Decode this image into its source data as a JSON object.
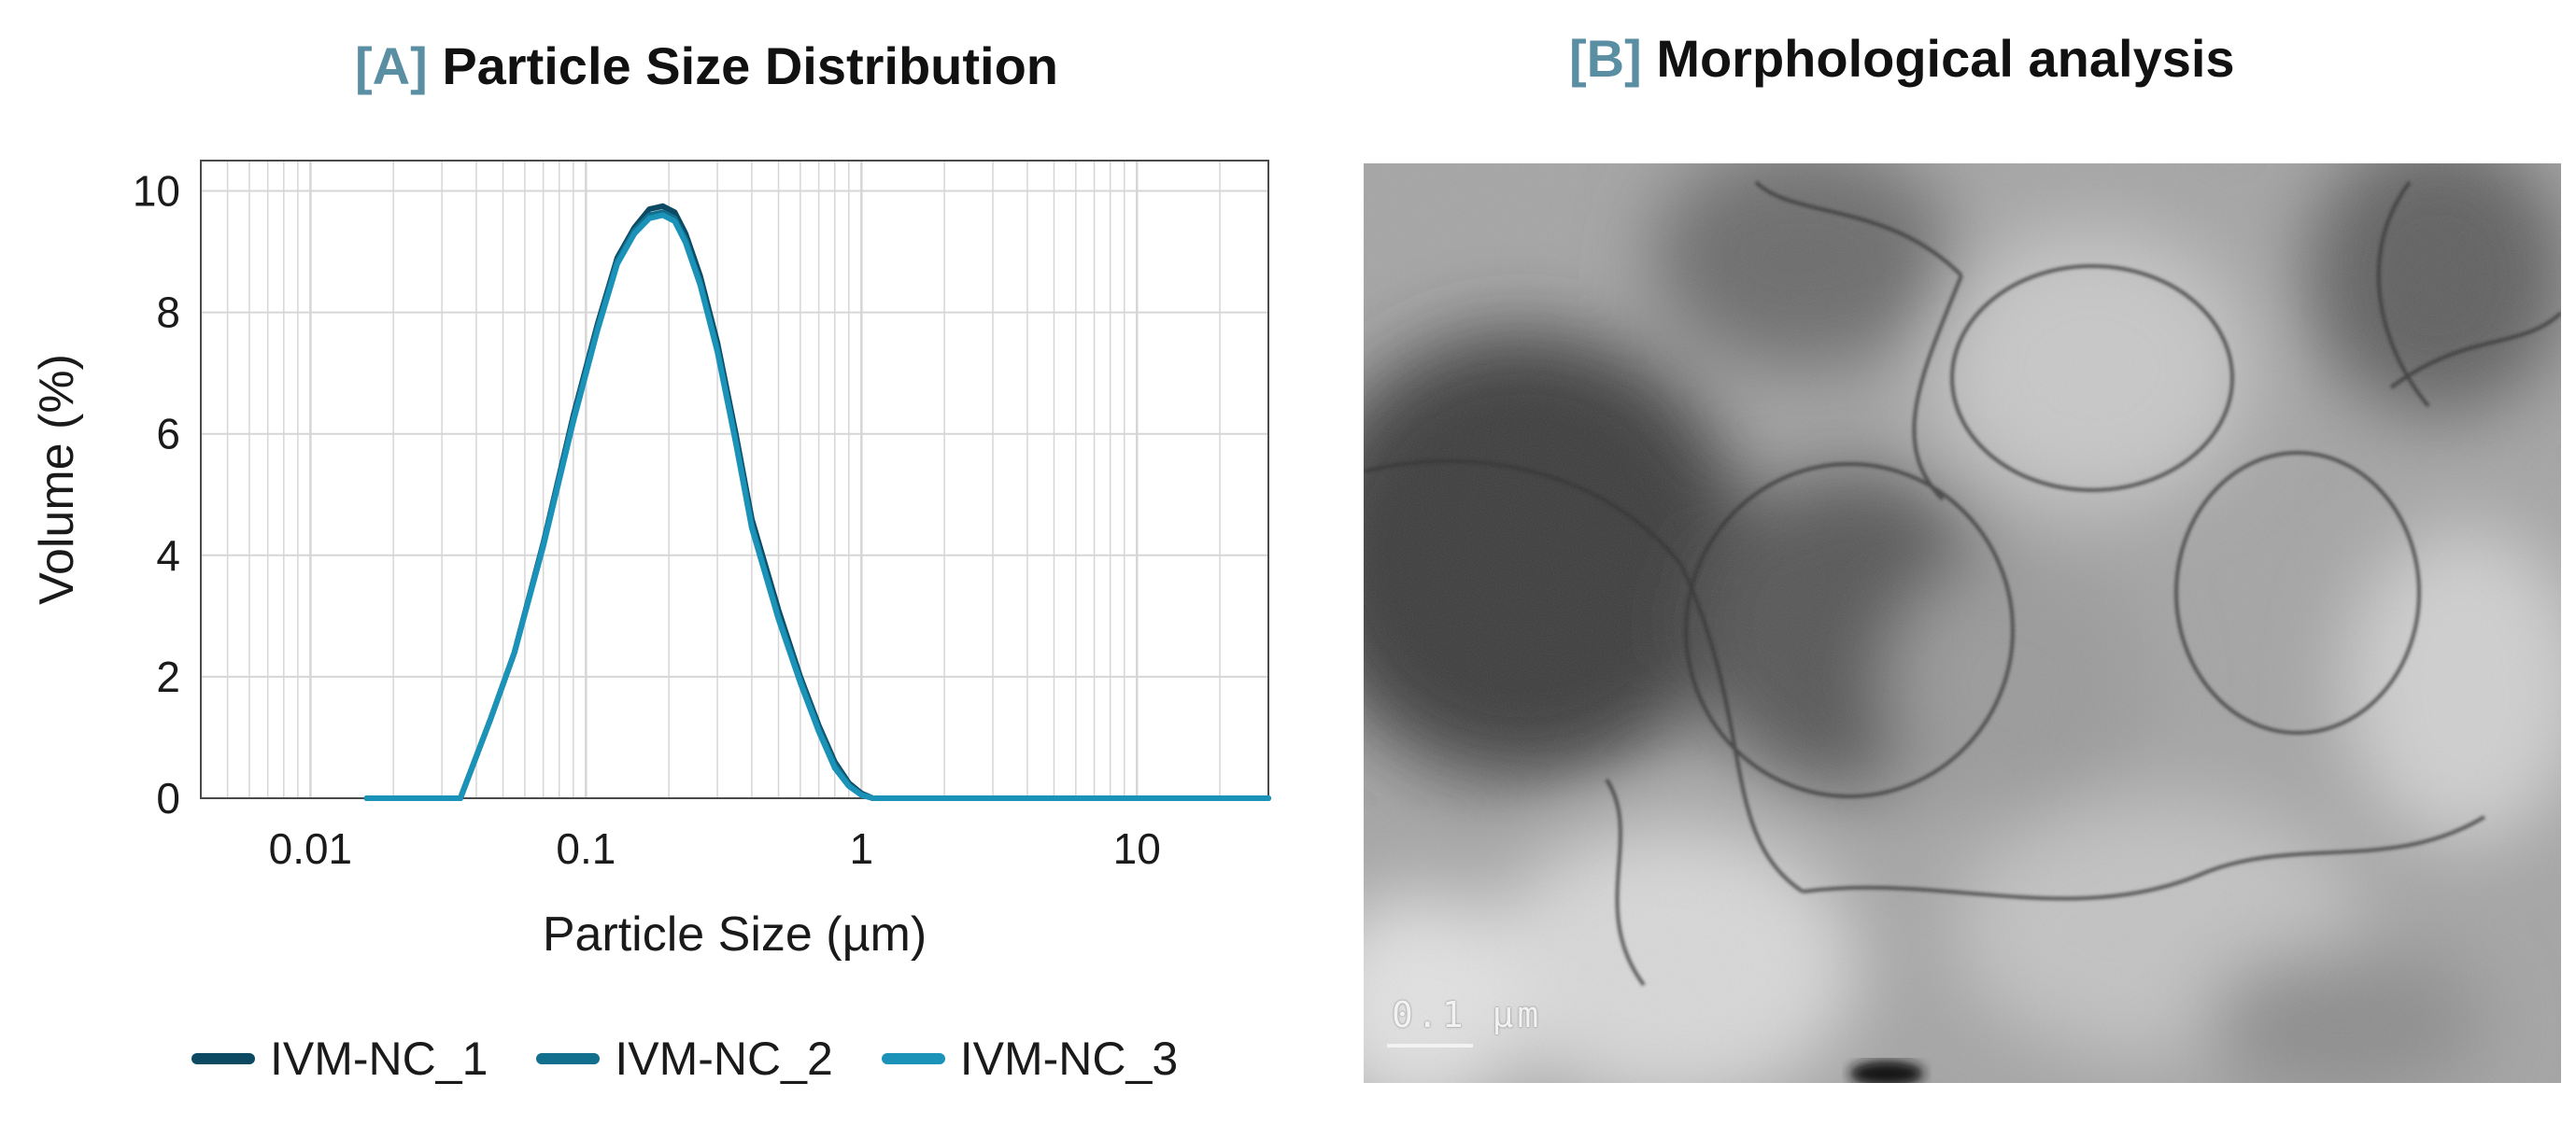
{
  "panel_a": {
    "tag": "[A]",
    "title": "Particle Size Distribution"
  },
  "panel_b": {
    "tag": "[B]",
    "title": "Morphological analysis",
    "scale_bar_label": "0.1 µm"
  },
  "colors": {
    "series_1": "#0c4a63",
    "series_2": "#126f8e",
    "series_3": "#1b93b8",
    "tag": "#5a8fa3",
    "grid": "#d6d6d6"
  },
  "chart_data": {
    "type": "line",
    "xlabel": "Particle Size (µm)",
    "ylabel": "Volume (%)",
    "x_scale": "log",
    "xlim": [
      0.004,
      30
    ],
    "ylim": [
      0,
      10.5
    ],
    "x_ticks": [
      {
        "value": 0.01,
        "label": "0.01"
      },
      {
        "value": 0.1,
        "label": "0.1"
      },
      {
        "value": 1,
        "label": "1"
      },
      {
        "value": 10,
        "label": "10"
      }
    ],
    "y_ticks": [
      {
        "value": 0,
        "label": "0"
      },
      {
        "value": 2,
        "label": "2"
      },
      {
        "value": 4,
        "label": "4"
      },
      {
        "value": 6,
        "label": "6"
      },
      {
        "value": 8,
        "label": "8"
      },
      {
        "value": 10,
        "label": "10"
      }
    ],
    "grid": true,
    "legend_position": "bottom",
    "x": [
      0.016,
      0.025,
      0.035,
      0.045,
      0.055,
      0.07,
      0.09,
      0.11,
      0.13,
      0.15,
      0.17,
      0.19,
      0.21,
      0.23,
      0.26,
      0.3,
      0.35,
      0.4,
      0.5,
      0.6,
      0.7,
      0.8,
      0.9,
      1.0,
      1.1,
      1.3,
      2,
      5,
      10,
      30
    ],
    "series": [
      {
        "name": "IVM-NC_1",
        "values": [
          0,
          0,
          0,
          1.3,
          2.4,
          4.2,
          6.3,
          7.8,
          8.9,
          9.4,
          9.7,
          9.75,
          9.65,
          9.3,
          8.6,
          7.5,
          6.0,
          4.6,
          3.1,
          2.0,
          1.2,
          0.6,
          0.25,
          0.08,
          0,
          0,
          0,
          0,
          0,
          0
        ]
      },
      {
        "name": "IVM-NC_2",
        "values": [
          0,
          0,
          0,
          1.3,
          2.4,
          4.2,
          6.25,
          7.75,
          8.85,
          9.35,
          9.6,
          9.65,
          9.55,
          9.2,
          8.5,
          7.4,
          5.9,
          4.5,
          3.0,
          1.95,
          1.15,
          0.55,
          0.22,
          0.06,
          0,
          0,
          0,
          0,
          0,
          0
        ]
      },
      {
        "name": "IVM-NC_3",
        "values": [
          0,
          0,
          0,
          1.3,
          2.4,
          4.15,
          6.2,
          7.7,
          8.8,
          9.3,
          9.55,
          9.6,
          9.5,
          9.15,
          8.45,
          7.35,
          5.85,
          4.45,
          2.95,
          1.9,
          1.1,
          0.5,
          0.2,
          0.05,
          0,
          0,
          0,
          0,
          0,
          0
        ]
      }
    ]
  }
}
